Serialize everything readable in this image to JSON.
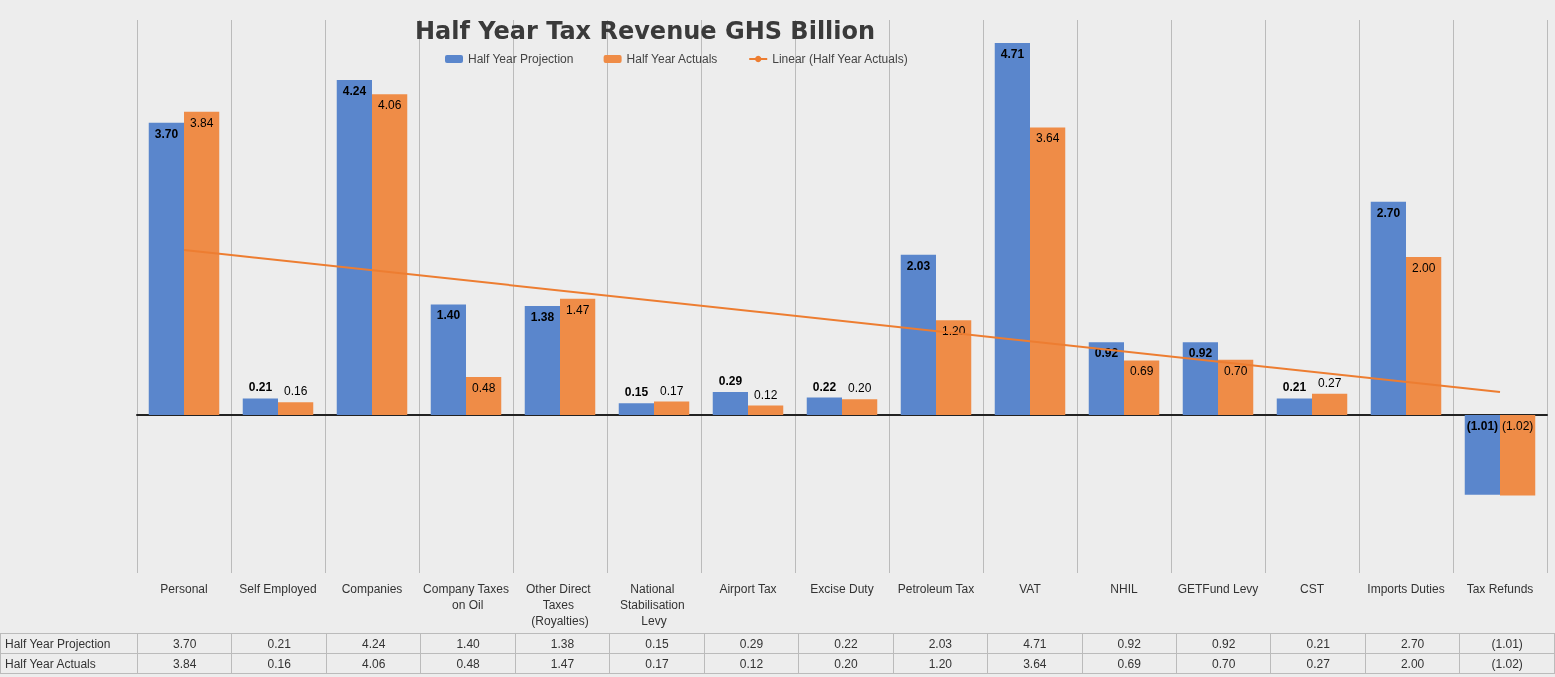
{
  "chart_data": {
    "type": "bar",
    "title": "Half Year Tax Revenue GHS Billion",
    "categories": [
      "Personal",
      "Self Employed",
      "Companies",
      "Company Taxes on Oil",
      "Other Direct Taxes (Royalties)",
      "National Stabilisation Levy",
      "Airport Tax",
      "Excise Duty",
      "Petroleum Tax",
      "VAT",
      "NHIL",
      "GETFund Levy",
      "CST",
      "Imports Duties",
      "Tax Refunds"
    ],
    "series": [
      {
        "name": "Half Year Projection",
        "color": "#5a86cc",
        "values": [
          3.7,
          0.21,
          4.24,
          1.4,
          1.38,
          0.15,
          0.29,
          0.22,
          2.03,
          4.71,
          0.92,
          0.92,
          0.21,
          2.7,
          -1.01
        ],
        "value_labels": [
          "3.70",
          "0.21",
          "4.24",
          "1.40",
          "1.38",
          "0.15",
          "0.29",
          "0.22",
          "2.03",
          "4.71",
          "0.92",
          "0.92",
          "0.21",
          "2.70",
          "(1.01)"
        ]
      },
      {
        "name": "Half Year Actuals",
        "color": "#ef8c47",
        "values": [
          3.84,
          0.16,
          4.06,
          0.48,
          1.47,
          0.17,
          0.12,
          0.2,
          1.2,
          3.64,
          0.69,
          0.7,
          0.27,
          2.0,
          -1.02
        ],
        "value_labels": [
          "3.84",
          "0.16",
          "4.06",
          "0.48",
          "1.47",
          "0.17",
          "0.12",
          "0.20",
          "1.20",
          "3.64",
          "0.69",
          "0.70",
          "0.27",
          "2.00",
          "(1.02)"
        ]
      },
      {
        "name": "Linear (Half Year Actuals)",
        "type": "line",
        "color": "#ed7d31",
        "x": [
          "Personal",
          "Tax Refunds"
        ],
        "values": [
          2.09,
          0.29
        ]
      }
    ],
    "legend": "top"
  }
}
